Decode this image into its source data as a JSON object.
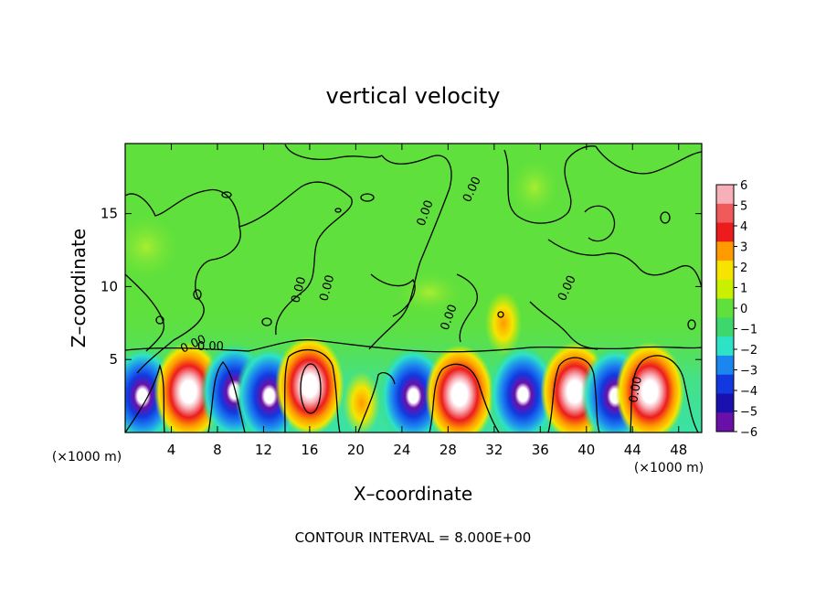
{
  "chart_data": {
    "type": "heatmap",
    "title": "vertical velocity",
    "xlabel": "X–coordinate",
    "ylabel": "Z–coordinate",
    "x_unit_left": "(×1000 m)",
    "x_unit_right": "(×1000 m)",
    "footer": "CONTOUR INTERVAL = 8.000E+00",
    "xlim": [
      0,
      50
    ],
    "ylim": [
      0,
      19.8
    ],
    "x_ticks": [
      "4",
      "8",
      "12",
      "16",
      "20",
      "24",
      "28",
      "32",
      "36",
      "40",
      "44",
      "48"
    ],
    "y_ticks": [
      "5",
      "10",
      "15"
    ],
    "contour_labels": [
      "0.00",
      "0.00",
      "0.00",
      "0.00",
      "0.00",
      "0.00",
      "0.00",
      "0.00",
      "0.00"
    ],
    "colorbar": {
      "levels": [
        "6",
        "5",
        "4",
        "3",
        "2",
        "1",
        "0",
        "−1",
        "−2",
        "−3",
        "−4",
        "−5",
        "−6"
      ],
      "colors": [
        "#f8b0b8",
        "#f05a5a",
        "#ec1c1c",
        "#ff9a00",
        "#f6e400",
        "#c8f000",
        "#5fe03c",
        "#3cd86e",
        "#2ee2c8",
        "#1c86f0",
        "#1238e0",
        "#1a10b0",
        "#6a10a8"
      ]
    },
    "cells": [
      {
        "x": 1.5,
        "z": 2.5,
        "w": -5.5
      },
      {
        "x": 5.5,
        "z": 2.8,
        "w": 5.5
      },
      {
        "x": 9.5,
        "z": 2.8,
        "w": -4.8
      },
      {
        "x": 12.5,
        "z": 2.5,
        "w": -5.5
      },
      {
        "x": 16.0,
        "z": 3.2,
        "w": 6.0
      },
      {
        "x": 20.5,
        "z": 2.0,
        "w": 3.0
      },
      {
        "x": 25.0,
        "z": 2.5,
        "w": -4.0
      },
      {
        "x": 29.0,
        "z": 2.6,
        "w": 5.5
      },
      {
        "x": 34.5,
        "z": 2.6,
        "w": -4.5
      },
      {
        "x": 39.0,
        "z": 2.8,
        "w": 5.8
      },
      {
        "x": 42.5,
        "z": 2.5,
        "w": -5.0
      },
      {
        "x": 45.5,
        "z": 2.8,
        "w": 5.8
      },
      {
        "x": 32.8,
        "z": 7.5,
        "w": 2.5
      }
    ]
  }
}
